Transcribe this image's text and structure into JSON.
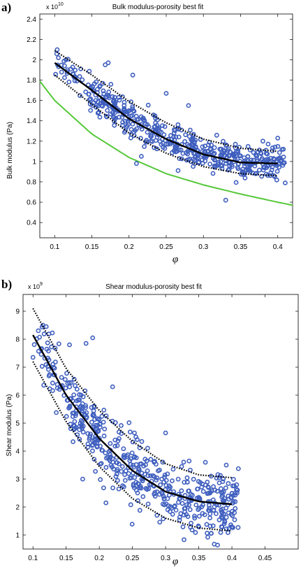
{
  "figure": {
    "panels": [
      {
        "label": "a)",
        "title": "Bulk modulus-porosity best fit",
        "ylabel": "Bulk modulus (Pa)",
        "xlabel": "φ",
        "multiplier_base": "x 10",
        "multiplier_exp": "10"
      },
      {
        "label": "b)",
        "title": "Shear modulus-porosity best fit",
        "ylabel": "Shear modulus (Pa)",
        "xlabel": "φ",
        "multiplier_base": "x 10",
        "multiplier_exp": "9"
      }
    ]
  },
  "colors": {
    "points": "#3f5fbf",
    "fit": "#000000",
    "bound": "#000000",
    "lower_bound_curve": "#55c83a"
  },
  "chart_data": [
    {
      "type": "scatter",
      "title": "Bulk modulus-porosity best fit",
      "xlabel": "φ",
      "ylabel": "Bulk modulus (Pa)",
      "y_scale_note": "x 10^10",
      "xlim": [
        0.08,
        0.42
      ],
      "ylim": [
        0.25,
        2.45
      ],
      "xticks": [
        0.1,
        0.15,
        0.2,
        0.25,
        0.3,
        0.35,
        0.4
      ],
      "yticks": [
        0.4,
        0.6,
        0.8,
        1,
        1.2,
        1.4,
        1.6,
        1.8,
        2,
        2.2,
        2.4
      ],
      "grid": false,
      "scatter_cloud": {
        "x_range": [
          0.1,
          0.41
        ],
        "n_points": 520
      },
      "series": [
        {
          "style": "fitted line",
          "x": [
            0.1,
            0.15,
            0.2,
            0.25,
            0.3,
            0.35,
            0.4
          ],
          "y": [
            1.97,
            1.7,
            1.42,
            1.22,
            1.07,
            0.99,
            0.98
          ]
        },
        {
          "style": "dotted upper bound",
          "x": [
            0.1,
            0.15,
            0.2,
            0.25,
            0.3,
            0.35,
            0.4
          ],
          "y": [
            2.09,
            1.85,
            1.59,
            1.38,
            1.22,
            1.13,
            1.1
          ]
        },
        {
          "style": "dotted lower bound",
          "x": [
            0.1,
            0.15,
            0.2,
            0.25,
            0.3,
            0.35,
            0.4
          ],
          "y": [
            1.85,
            1.56,
            1.28,
            1.08,
            0.95,
            0.88,
            0.86
          ]
        },
        {
          "style": "green curve",
          "x": [
            0.08,
            0.1,
            0.15,
            0.2,
            0.25,
            0.3,
            0.35,
            0.4,
            0.42
          ],
          "y": [
            1.79,
            1.6,
            1.27,
            1.04,
            0.88,
            0.77,
            0.68,
            0.6,
            0.57
          ]
        }
      ],
      "scatter_samples": [
        {
          "x": 0.105,
          "y": 2.02
        },
        {
          "x": 0.115,
          "y": 2.0
        },
        {
          "x": 0.135,
          "y": 1.91
        },
        {
          "x": 0.172,
          "y": 1.97
        },
        {
          "x": 0.168,
          "y": 1.95
        },
        {
          "x": 0.205,
          "y": 1.85
        },
        {
          "x": 0.155,
          "y": 1.6
        },
        {
          "x": 0.21,
          "y": 0.98
        },
        {
          "x": 0.28,
          "y": 1.55
        },
        {
          "x": 0.33,
          "y": 0.62
        },
        {
          "x": 0.4,
          "y": 1.23
        },
        {
          "x": 0.41,
          "y": 0.79
        },
        {
          "x": 0.38,
          "y": 1.2
        },
        {
          "x": 0.25,
          "y": 1.67
        },
        {
          "x": 0.235,
          "y": 1.45
        }
      ]
    },
    {
      "type": "scatter",
      "title": "Shear modulus-porosity best fit",
      "xlabel": "φ",
      "ylabel": "Shear modulus (Pa)",
      "y_scale_note": "x 10^9",
      "xlim": [
        0.085,
        0.5
      ],
      "ylim": [
        0.5,
        9.6
      ],
      "xticks": [
        0.1,
        0.15,
        0.2,
        0.25,
        0.3,
        0.35,
        0.4,
        0.45
      ],
      "yticks": [
        1,
        2,
        3,
        4,
        5,
        6,
        7,
        8,
        9
      ],
      "grid": false,
      "scatter_cloud": {
        "x_range": [
          0.1,
          0.41
        ],
        "n_points": 540
      },
      "series": [
        {
          "style": "fitted line",
          "x": [
            0.1,
            0.15,
            0.2,
            0.25,
            0.3,
            0.35,
            0.4
          ],
          "y": [
            8.15,
            6.0,
            4.45,
            3.3,
            2.55,
            2.2,
            2.1
          ]
        },
        {
          "style": "dotted upper bound",
          "x": [
            0.1,
            0.15,
            0.2,
            0.25,
            0.3,
            0.35,
            0.4
          ],
          "y": [
            9.1,
            6.95,
            5.45,
            4.35,
            3.55,
            3.15,
            3.05
          ]
        },
        {
          "style": "dotted lower bound",
          "x": [
            0.1,
            0.15,
            0.2,
            0.25,
            0.3,
            0.35,
            0.4
          ],
          "y": [
            7.2,
            5.05,
            3.45,
            2.3,
            1.6,
            1.25,
            1.15
          ]
        }
      ],
      "scatter_samples": [
        {
          "x": 0.1,
          "y": 7.35
        },
        {
          "x": 0.115,
          "y": 8.5
        },
        {
          "x": 0.12,
          "y": 8.45
        },
        {
          "x": 0.19,
          "y": 8.05
        },
        {
          "x": 0.18,
          "y": 7.85
        },
        {
          "x": 0.155,
          "y": 7.8
        },
        {
          "x": 0.175,
          "y": 3.0
        },
        {
          "x": 0.21,
          "y": 2.15
        },
        {
          "x": 0.405,
          "y": 1.95
        },
        {
          "x": 0.36,
          "y": 3.6
        },
        {
          "x": 0.3,
          "y": 4.65
        },
        {
          "x": 0.22,
          "y": 6.3
        }
      ]
    }
  ]
}
